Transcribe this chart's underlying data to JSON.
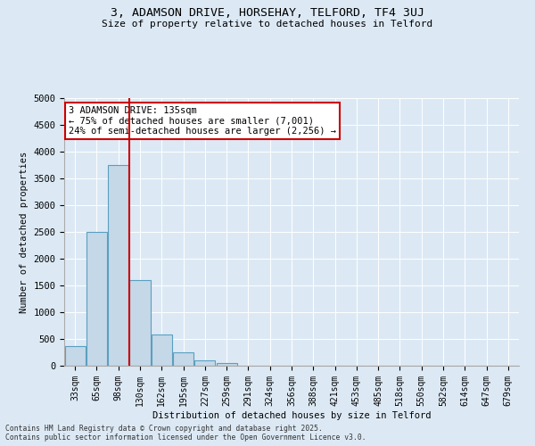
{
  "title_line1": "3, ADAMSON DRIVE, HORSEHAY, TELFORD, TF4 3UJ",
  "title_line2": "Size of property relative to detached houses in Telford",
  "xlabel": "Distribution of detached houses by size in Telford",
  "ylabel": "Number of detached properties",
  "categories": [
    "33sqm",
    "65sqm",
    "98sqm",
    "130sqm",
    "162sqm",
    "195sqm",
    "227sqm",
    "259sqm",
    "291sqm",
    "324sqm",
    "356sqm",
    "388sqm",
    "421sqm",
    "453sqm",
    "485sqm",
    "518sqm",
    "550sqm",
    "582sqm",
    "614sqm",
    "647sqm",
    "679sqm"
  ],
  "values": [
    370,
    2500,
    3750,
    1600,
    580,
    250,
    105,
    50,
    0,
    0,
    0,
    0,
    0,
    0,
    0,
    0,
    0,
    0,
    0,
    0,
    0
  ],
  "bar_color": "#c5d8e8",
  "bar_edge_color": "#5a9fc0",
  "vline_color": "#cc0000",
  "vline_bin_index": 3,
  "annotation_text": "3 ADAMSON DRIVE: 135sqm\n← 75% of detached houses are smaller (7,001)\n24% of semi-detached houses are larger (2,256) →",
  "annotation_box_color": "#cc0000",
  "ylim": [
    0,
    5000
  ],
  "yticks": [
    0,
    500,
    1000,
    1500,
    2000,
    2500,
    3000,
    3500,
    4000,
    4500,
    5000
  ],
  "background_color": "#dce9f5",
  "grid_color": "#ffffff",
  "footer_line1": "Contains HM Land Registry data © Crown copyright and database right 2025.",
  "footer_line2": "Contains public sector information licensed under the Open Government Licence v3.0."
}
